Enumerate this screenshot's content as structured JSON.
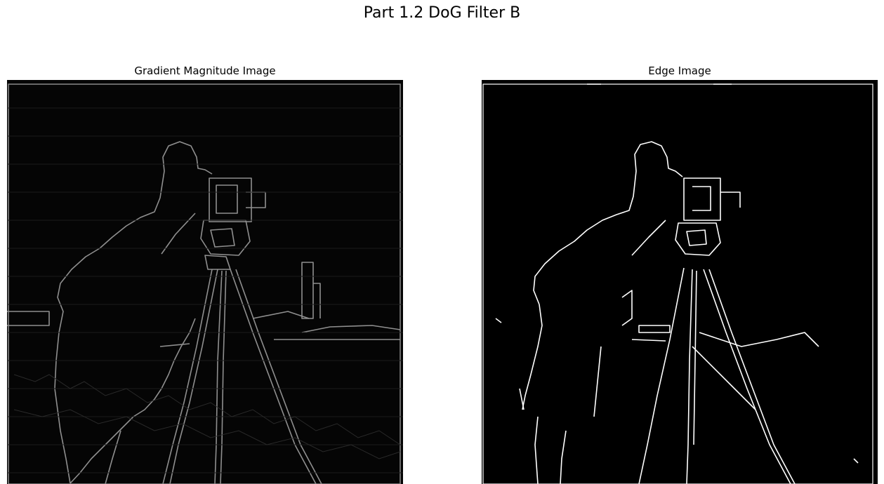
{
  "figure": {
    "suptitle": "Part 1.2 DoG Filter B",
    "panels": [
      {
        "title": "Gradient Magnitude Image"
      },
      {
        "title": "Edge Image"
      }
    ]
  },
  "colors": {
    "background": "#ffffff",
    "image_background": "#000000",
    "gradient_edges": "#9a9a9a",
    "edge_lines": "#ffffff"
  }
}
